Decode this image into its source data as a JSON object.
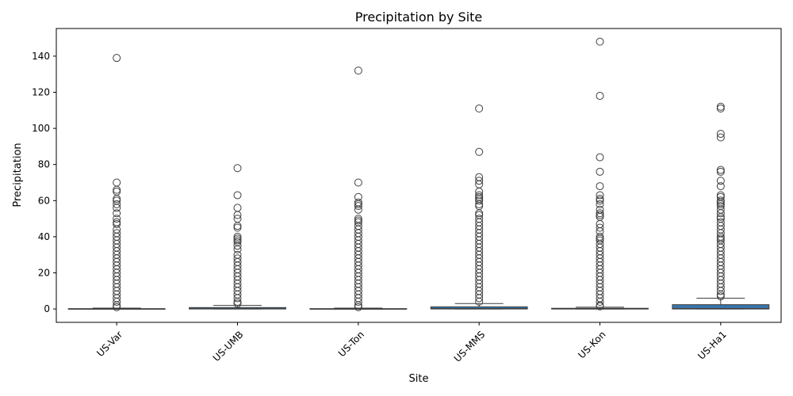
{
  "chart_data": {
    "type": "box",
    "title": "Precipitation by Site",
    "xlabel": "Site",
    "ylabel": "Precipitation",
    "ylim": [
      -7.4,
      155.3
    ],
    "yticks": [
      0,
      20,
      40,
      60,
      80,
      100,
      120,
      140
    ],
    "box_color": "#3a75a8",
    "categories": [
      "US-Var",
      "US-UMB",
      "US-Ton",
      "US-MMS",
      "US-Kon",
      "US-Ha1"
    ],
    "boxes": [
      {
        "category": "US-Var",
        "min": 0,
        "q1": 0,
        "median": 0,
        "q3": 0.2,
        "max": 0.5,
        "outliers": [
          139,
          70,
          66,
          65,
          61,
          60,
          58,
          56,
          53,
          50,
          48,
          47,
          44,
          42,
          40,
          38,
          36,
          34,
          32,
          30,
          28,
          26,
          24,
          22,
          20,
          18,
          16,
          14,
          12,
          10,
          8,
          6,
          4,
          2,
          1
        ]
      },
      {
        "category": "US-UMB",
        "min": 0,
        "q1": 0,
        "median": 0.2,
        "q3": 0.8,
        "max": 2,
        "outliers": [
          78,
          63,
          56,
          52,
          50,
          46,
          45,
          40,
          39,
          38,
          37,
          35,
          33,
          30,
          28,
          26,
          24,
          22,
          20,
          18,
          16,
          14,
          12,
          10,
          8,
          6,
          4,
          3
        ]
      },
      {
        "category": "US-Ton",
        "min": 0,
        "q1": 0,
        "median": 0,
        "q3": 0.2,
        "max": 0.5,
        "outliers": [
          132,
          70,
          62,
          59,
          58,
          57,
          55,
          50,
          49,
          48,
          46,
          44,
          42,
          40,
          38,
          36,
          34,
          32,
          30,
          28,
          26,
          24,
          22,
          20,
          18,
          16,
          14,
          12,
          10,
          8,
          6,
          4,
          2,
          1
        ]
      },
      {
        "category": "US-MMS",
        "min": 0,
        "q1": 0,
        "median": 0.3,
        "q3": 1.2,
        "max": 3,
        "outliers": [
          111,
          87,
          73,
          71,
          69,
          65,
          63,
          62,
          61,
          60,
          58,
          57,
          53,
          52,
          50,
          48,
          46,
          44,
          42,
          40,
          38,
          36,
          34,
          32,
          30,
          28,
          26,
          24,
          22,
          20,
          18,
          16,
          14,
          12,
          10,
          8,
          6,
          4
        ]
      },
      {
        "category": "US-Kon",
        "min": 0,
        "q1": 0,
        "median": 0,
        "q3": 0.4,
        "max": 1,
        "outliers": [
          148,
          118,
          84,
          76,
          68,
          63,
          61,
          60,
          58,
          55,
          53,
          52,
          51,
          47,
          45,
          43,
          40,
          39,
          38,
          36,
          34,
          32,
          30,
          28,
          26,
          24,
          22,
          20,
          18,
          16,
          14,
          12,
          10,
          8,
          6,
          4,
          2,
          1.5
        ]
      },
      {
        "category": "US-Ha1",
        "min": 0,
        "q1": 0,
        "median": 0.3,
        "q3": 2.4,
        "max": 6,
        "outliers": [
          112,
          111,
          97,
          95,
          77,
          76,
          71,
          68,
          63,
          62,
          60,
          59,
          58,
          57,
          55,
          53,
          51,
          50,
          48,
          46,
          44,
          42,
          40,
          39,
          38,
          36,
          34,
          32,
          30,
          28,
          26,
          24,
          22,
          20,
          18,
          16,
          14,
          12,
          10,
          8,
          7
        ]
      }
    ]
  }
}
